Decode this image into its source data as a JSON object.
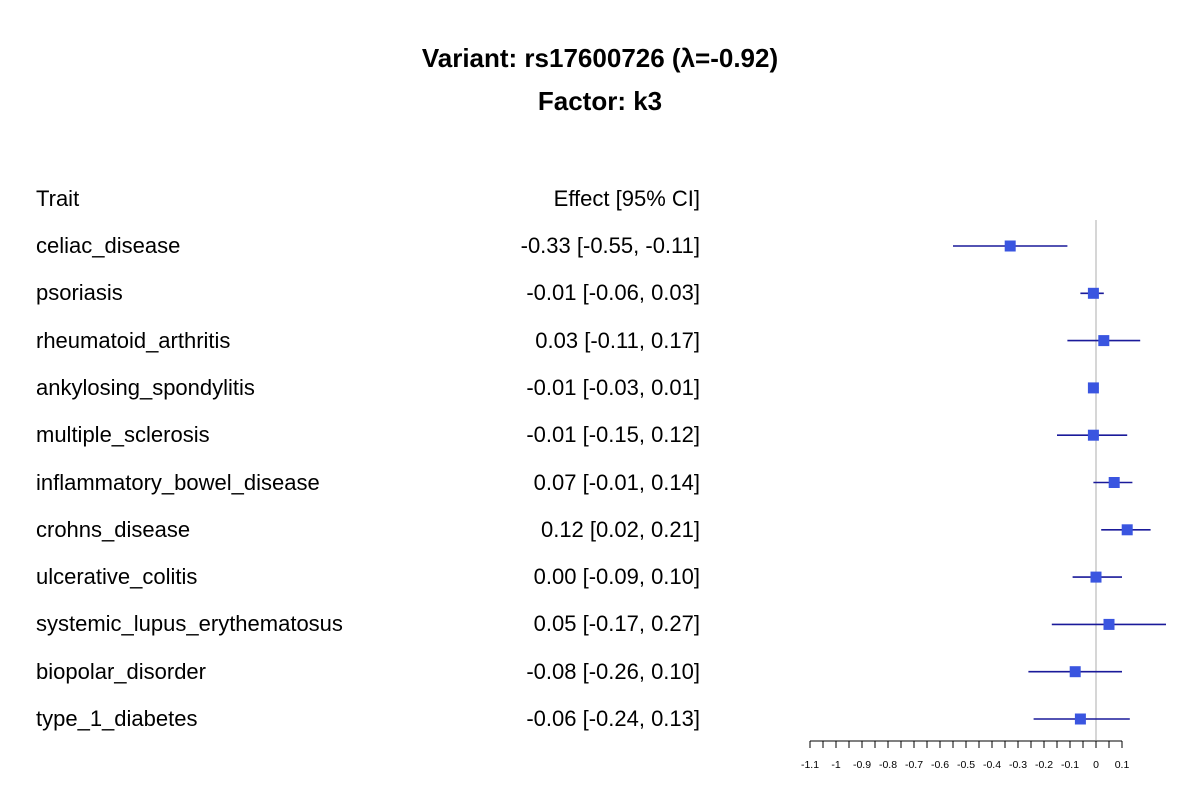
{
  "title_line1": "Variant: rs17600726 (λ=-0.92)",
  "title_line2": "Factor: k3",
  "header": {
    "trait": "Trait",
    "effect": "Effect [95% CI]"
  },
  "chart_data": {
    "type": "forest",
    "title": "Variant: rs17600726 (λ=-0.92)",
    "subtitle": "Factor: k3",
    "xlim": [
      -1.1,
      0.1
    ],
    "xticks": [
      -1.1,
      -1,
      -0.9,
      -0.8,
      -0.7,
      -0.6,
      -0.5,
      -0.4,
      -0.3,
      -0.2,
      -0.1,
      0,
      0.1
    ],
    "xtick_labels": [
      "-1.1",
      "-1",
      "-0.9",
      "-0.8",
      "-0.7",
      "-0.6",
      "-0.5",
      "-0.4",
      "-0.3",
      "-0.2",
      "-0.1",
      "0",
      "0.1"
    ],
    "reference_line": 0,
    "point_color": "#3a55e0",
    "ci_color": "#1a1a9a",
    "ref_line_color": "#c8c8c8",
    "rows": [
      {
        "trait": "celiac_disease",
        "effect_text": "-0.33 [-0.55, -0.11]",
        "est": -0.33,
        "lo": -0.55,
        "hi": -0.11
      },
      {
        "trait": "psoriasis",
        "effect_text": "-0.01 [-0.06, 0.03]",
        "est": -0.01,
        "lo": -0.06,
        "hi": 0.03
      },
      {
        "trait": "rheumatoid_arthritis",
        "effect_text": "0.03 [-0.11, 0.17]",
        "est": 0.03,
        "lo": -0.11,
        "hi": 0.17
      },
      {
        "trait": "ankylosing_spondylitis",
        "effect_text": "-0.01 [-0.03, 0.01]",
        "est": -0.01,
        "lo": -0.03,
        "hi": 0.01
      },
      {
        "trait": "multiple_sclerosis",
        "effect_text": "-0.01 [-0.15, 0.12]",
        "est": -0.01,
        "lo": -0.15,
        "hi": 0.12
      },
      {
        "trait": "inflammatory_bowel_disease",
        "effect_text": "0.07 [-0.01, 0.14]",
        "est": 0.07,
        "lo": -0.01,
        "hi": 0.14
      },
      {
        "trait": "crohns_disease",
        "effect_text": "0.12 [0.02, 0.21]",
        "est": 0.12,
        "lo": 0.02,
        "hi": 0.21
      },
      {
        "trait": "ulcerative_colitis",
        "effect_text": "0.00 [-0.09, 0.10]",
        "est": 0.0,
        "lo": -0.09,
        "hi": 0.1
      },
      {
        "trait": "systemic_lupus_erythematosus",
        "effect_text": "0.05 [-0.17, 0.27]",
        "est": 0.05,
        "lo": -0.17,
        "hi": 0.27
      },
      {
        "trait": "biopolar_disorder",
        "effect_text": "-0.08 [-0.26, 0.10]",
        "est": -0.08,
        "lo": -0.26,
        "hi": 0.1
      },
      {
        "trait": "type_1_diabetes",
        "effect_text": "-0.06 [-0.24, 0.13]",
        "est": -0.06,
        "lo": -0.24,
        "hi": 0.13
      }
    ]
  }
}
